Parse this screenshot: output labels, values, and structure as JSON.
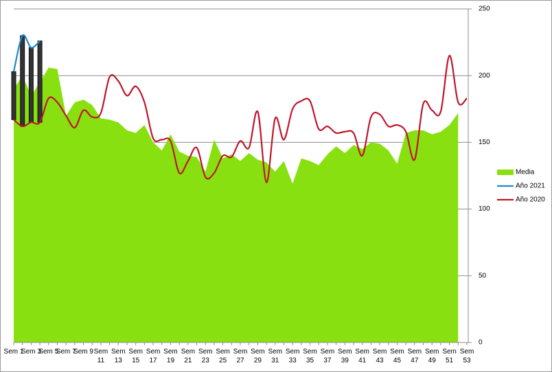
{
  "chart_data": {
    "type": "area_line",
    "categories": [
      "Sem 1",
      null,
      "Sem 3",
      null,
      "Sem 5",
      null,
      "Sem 7",
      null,
      "Sem 9",
      null,
      "Sem 11",
      null,
      "Sem 13",
      null,
      "Sem 15",
      null,
      "Sem 17",
      null,
      "Sem 19",
      null,
      "Sem 21",
      null,
      "Sem 23",
      null,
      "Sem 25",
      null,
      "Sem 27",
      null,
      "Sem 29",
      null,
      "Sem 31",
      null,
      "Sem 33",
      null,
      "Sem 35",
      null,
      "Sem 37",
      null,
      "Sem 39",
      null,
      "Sem 41",
      null,
      "Sem 43",
      null,
      "Sem 45",
      null,
      "Sem 47",
      null,
      "Sem 49",
      null,
      "Sem 51",
      null,
      "Sem 53"
    ],
    "series": [
      {
        "name": "Media",
        "color": "#88e010",
        "values": [
          190,
          200,
          185,
          195,
          206,
          205,
          170,
          180,
          182,
          178,
          168,
          167,
          165,
          159,
          157,
          163,
          150,
          144,
          156,
          143,
          140,
          139,
          128,
          152,
          138,
          141,
          136,
          142,
          137,
          135,
          128,
          136,
          119,
          138,
          136,
          133,
          141,
          147,
          142,
          148,
          145,
          150,
          149,
          144,
          134,
          157,
          159,
          159,
          156,
          158,
          163,
          172,
          null
        ]
      },
      {
        "name": "Año 2021",
        "color": "#1f8ad0",
        "values": [
          203,
          230,
          221,
          226,
          null,
          null,
          null,
          null,
          null,
          null,
          null,
          null,
          null,
          null,
          null,
          null,
          null,
          null,
          null,
          null,
          null,
          null,
          null,
          null,
          null,
          null,
          null,
          null,
          null,
          null,
          null,
          null,
          null,
          null,
          null,
          null,
          null,
          null,
          null,
          null,
          null,
          null,
          null,
          null,
          null,
          null,
          null,
          null,
          null,
          null,
          null,
          null,
          null
        ]
      },
      {
        "name": "Año 2020",
        "color": "#c0142a",
        "values": [
          167,
          162,
          165,
          165,
          183,
          180,
          170,
          161,
          174,
          169,
          172,
          199,
          196,
          185,
          192,
          180,
          153,
          152,
          151,
          127,
          136,
          146,
          124,
          127,
          140,
          139,
          151,
          146,
          173,
          120,
          168,
          152,
          175,
          181,
          181,
          160,
          162,
          157,
          158,
          157,
          140,
          169,
          171,
          162,
          163,
          158,
          137,
          179,
          174,
          173,
          215,
          180,
          183
        ]
      }
    ],
    "ylim": [
      0,
      250
    ],
    "yticks": [
      0,
      50,
      100,
      150,
      200,
      250
    ],
    "grid": true,
    "legend": "right"
  }
}
